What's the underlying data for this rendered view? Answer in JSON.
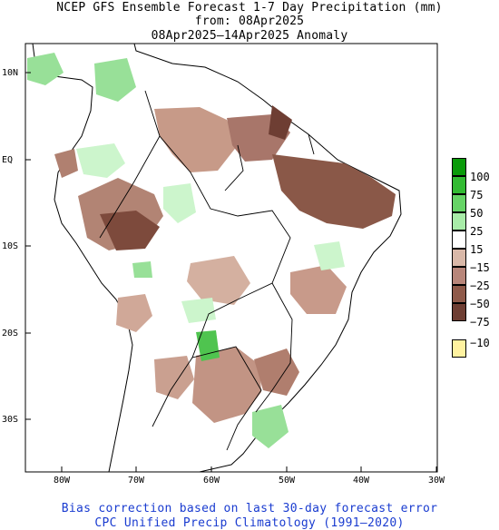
{
  "header": {
    "title": "NCEP GFS Ensemble Forecast 1-7 Day Precipitation (mm)",
    "from": "from: 08Apr2025",
    "period": "08Apr2025—14Apr2025 Anomaly"
  },
  "map": {
    "region": "South America",
    "lat_labels": [
      "10N",
      "EQ",
      "10S",
      "20S",
      "30S"
    ],
    "lon_labels": [
      "80W",
      "70W",
      "60W",
      "50W",
      "40W",
      "30W"
    ],
    "colors": {
      "ocean": "#ffffff",
      "coast": "#000000",
      "dry_light": "#d9b8a8",
      "dry_medium": "#b8867a",
      "dry_strong": "#8f5a4a",
      "dry_very": "#6e3e33",
      "wet_light": "#ccf5cc",
      "wet_medium": "#98e098",
      "wet_strong": "#4fc44f"
    }
  },
  "colorbar": {
    "levels": [
      {
        "label": "100",
        "color": "#0a9a0a"
      },
      {
        "label": "75",
        "color": "#33bb33"
      },
      {
        "label": "50",
        "color": "#66d466"
      },
      {
        "label": "25",
        "color": "#a8eca8"
      },
      {
        "label": "15",
        "color": "#ffffff"
      },
      {
        "label": "−15",
        "color": "#d9b8a8"
      },
      {
        "label": "−25",
        "color": "#b8867a"
      },
      {
        "label": "−50",
        "color": "#8f5a4a"
      },
      {
        "label": "−75",
        "color": "#6e3e33"
      },
      {
        "label": "−10",
        "color": "#fff2a0"
      }
    ]
  },
  "footer": {
    "line1": "Bias correction based on last 30-day forecast error",
    "line2": "CPC Unified Precip Climatology (1991—2020)"
  }
}
